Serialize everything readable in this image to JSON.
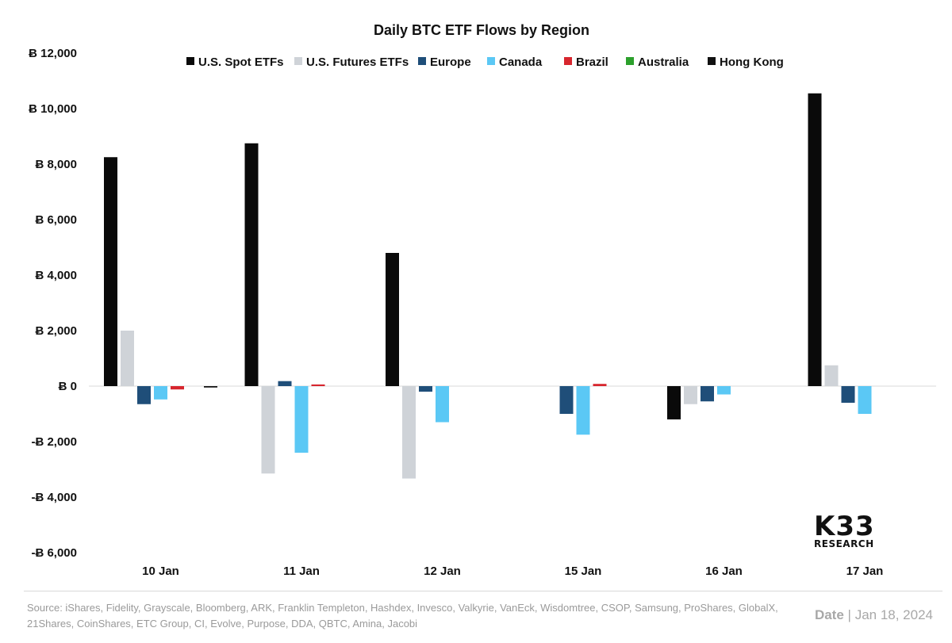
{
  "chart_data": {
    "type": "bar",
    "title": "Daily BTC ETF Flows by Region",
    "categories": [
      "10 Jan",
      "11 Jan",
      "12 Jan",
      "15 Jan",
      "16 Jan",
      "17 Jan"
    ],
    "series": [
      {
        "name": "U.S. Spot ETFs",
        "color": "#0a0a0a",
        "values": [
          8250,
          8750,
          4800,
          0,
          -1200,
          10550
        ]
      },
      {
        "name": "U.S. Futures ETFs",
        "color": "#cfd3d8",
        "values": [
          2000,
          -3150,
          -3330,
          0,
          -650,
          750
        ]
      },
      {
        "name": "Europe",
        "color": "#1f4e79",
        "values": [
          -650,
          180,
          -200,
          -1000,
          -550,
          -600
        ]
      },
      {
        "name": "Canada",
        "color": "#5bc8f5",
        "values": [
          -480,
          -2400,
          -1300,
          -1750,
          -300,
          -1000
        ]
      },
      {
        "name": "Brazil",
        "color": "#d7262e",
        "values": [
          -120,
          60,
          0,
          80,
          0,
          0
        ]
      },
      {
        "name": "Australia",
        "color": "#2ca02c",
        "values": [
          0,
          0,
          0,
          0,
          0,
          0
        ]
      },
      {
        "name": "Hong Kong",
        "color": "#111111",
        "values": [
          -50,
          0,
          0,
          0,
          0,
          0
        ]
      }
    ],
    "ylim": [
      -6000,
      12000
    ],
    "yticks": [
      12000,
      10000,
      8000,
      6000,
      4000,
      2000,
      0,
      -2000,
      -4000,
      -6000
    ],
    "ytick_labels": [
      "Ƀ 12,000",
      "Ƀ 10,000",
      "Ƀ 8,000",
      "Ƀ 6,000",
      "Ƀ 4,000",
      "Ƀ 2,000",
      "Ƀ 0",
      "-Ƀ 2,000",
      "-Ƀ 4,000",
      "-Ƀ 6,000"
    ],
    "legend_position": "top-center",
    "grid": false
  },
  "footer": {
    "source_text": "Source:  iShares, Fidelity, Grayscale, Bloomberg, ARK, Franklin Templeton, Hashdex, Invesco, Valkyrie, VanEck, Wisdomtree, CSOP, Samsung, ProShares, GlobalX, 21Shares, CoinShares, ETC Group, CI, Evolve, Purpose, DDA, QBTC, Amina, Jacobi",
    "date_label": "Date",
    "date_value": "Jan 18, 2024"
  },
  "logo": {
    "main": "K33",
    "sub": "RESEARCH"
  }
}
